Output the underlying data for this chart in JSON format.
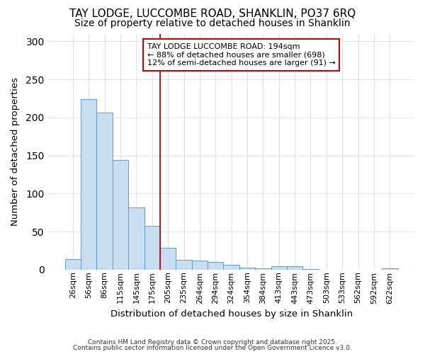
{
  "title1": "TAY LODGE, LUCCOMBE ROAD, SHANKLIN, PO37 6RQ",
  "title2": "Size of property relative to detached houses in Shanklin",
  "xlabel": "Distribution of detached houses by size in Shanklin",
  "ylabel": "Number of detached properties",
  "categories": [
    "26sqm",
    "56sqm",
    "86sqm",
    "115sqm",
    "145sqm",
    "175sqm",
    "205sqm",
    "235sqm",
    "264sqm",
    "294sqm",
    "324sqm",
    "354sqm",
    "384sqm",
    "413sqm",
    "443sqm",
    "473sqm",
    "503sqm",
    "533sqm",
    "562sqm",
    "592sqm",
    "622sqm"
  ],
  "values": [
    14,
    224,
    206,
    144,
    82,
    57,
    29,
    13,
    12,
    10,
    6,
    3,
    2,
    4,
    4,
    1,
    0,
    0,
    0,
    0,
    2
  ],
  "bar_color": "#c8ddf0",
  "bar_edge_color": "#6699cc",
  "background_color": "#ffffff",
  "plot_bg_color": "#ffffff",
  "grid_color": "#e0e0e0",
  "annotation_text": "TAY LODGE LUCCOMBE ROAD: 194sqm\n← 88% of detached houses are smaller (698)\n12% of semi-detached houses are larger (91) →",
  "annotation_box_color": "#ffffff",
  "annotation_box_edge_color": "#cc0000",
  "red_line_color": "#cc0000",
  "ylim": [
    0,
    310
  ],
  "yticks": [
    0,
    50,
    100,
    150,
    200,
    250,
    300
  ],
  "footer1": "Contains HM Land Registry data © Crown copyright and database right 2025.",
  "footer2": "Contains public sector information licensed under the Open Government Licence v3.0.",
  "title_fontsize": 11,
  "subtitle_fontsize": 10
}
